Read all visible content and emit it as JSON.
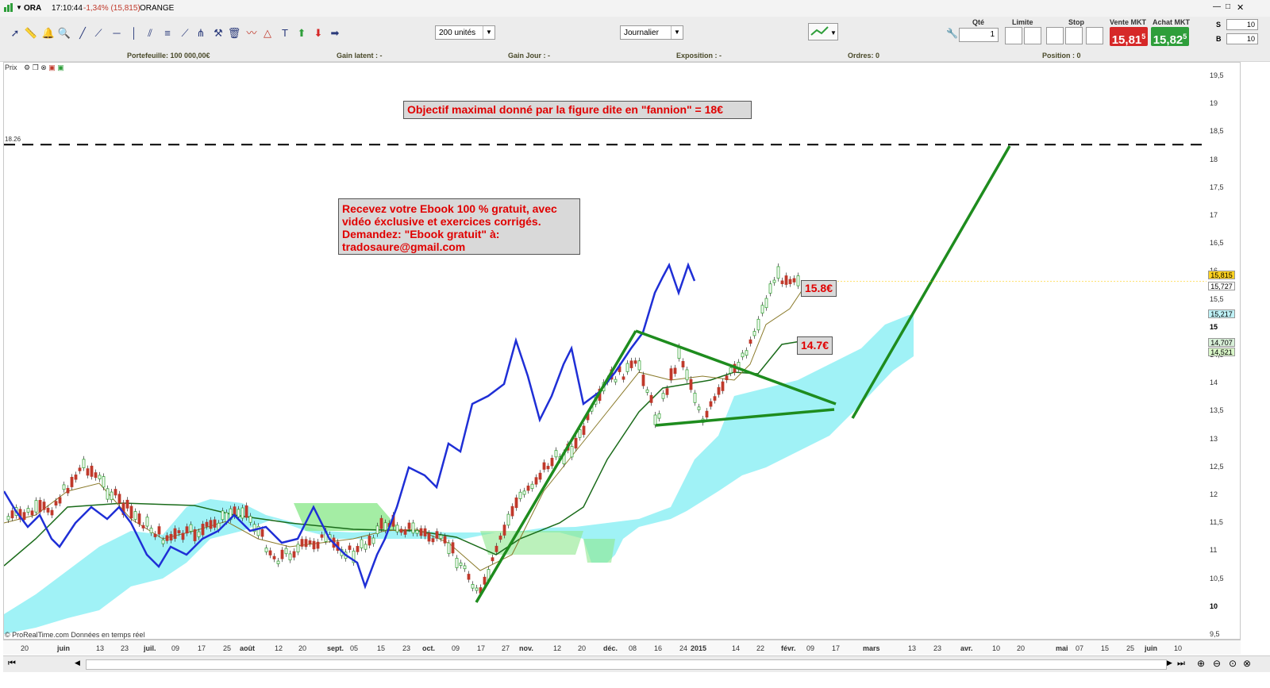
{
  "titlebar": {
    "symbol": "ORA",
    "time": "17:10:44",
    "change": "-1,34% (15,815)",
    "name": "ORANGE"
  },
  "toolbar": {
    "units_select": "200 unités",
    "period_select": "Journalier"
  },
  "order_panel": {
    "qty_label": "Qté",
    "qty_value": "1",
    "limit_label": "Limite",
    "stop_label": "Stop",
    "sell_label": "Vente MKT",
    "sell_price": "15,81",
    "sell_price_sup": "5",
    "buy_label": "Achat MKT",
    "buy_price": "15,82",
    "buy_price_sup": "5",
    "s_label": "S",
    "b_label": "B",
    "s_value": "10",
    "b_value": "10",
    "sell_color": "#d62828",
    "buy_color": "#2e9e3a"
  },
  "infobar": {
    "portfolio": "Portefeuille: 100 000,00€",
    "gain_latent": "Gain latent : -",
    "gain_jour": "Gain Jour : -",
    "exposition": "Exposition : -",
    "ordres": "Ordres: 0",
    "position": "Position : 0"
  },
  "chart_header": {
    "label": "Prix"
  },
  "chart": {
    "annotation_top": "Objectif maximal donné par la figure dite en \"fannion\"  = 18€",
    "ebook_lines": [
      "Recevez votre Ebook 100 % gratuit, avec",
      "vidéo éxclusive et exercices corrigés.",
      "Demandez: \"Ebook gratuit\" à:",
      "tradosaure@gmail.com"
    ],
    "tag_15_8": "15.8€",
    "tag_14_7": "14.7€",
    "target_line_label": "18.26",
    "footer": "© ProRealTime.com  Données en temps réel"
  },
  "y_axis": {
    "labels": [
      "19,5",
      "19",
      "18,5",
      "18",
      "17,5",
      "17",
      "16,5",
      "16",
      "15,5",
      "15",
      "14,5",
      "14",
      "13,5",
      "13",
      "12,5",
      "12",
      "11,5",
      "11",
      "10,5",
      "10",
      "9,5"
    ],
    "price_tags": [
      {
        "text": "15,815",
        "bg": "#ffd21f"
      },
      {
        "text": "15,727",
        "bg": "#ffffff"
      },
      {
        "text": "15,217",
        "bg": "#bff2f7"
      },
      {
        "text": "14,707",
        "bg": "#d8f0d8"
      },
      {
        "text": "14,521",
        "bg": "#d9f7c8"
      }
    ]
  },
  "x_axis": {
    "labels": [
      {
        "t": "20",
        "b": false
      },
      {
        "t": "juin",
        "b": true
      },
      {
        "t": "13",
        "b": false
      },
      {
        "t": "23",
        "b": false
      },
      {
        "t": "juil.",
        "b": true
      },
      {
        "t": "09",
        "b": false
      },
      {
        "t": "17",
        "b": false
      },
      {
        "t": "25",
        "b": false
      },
      {
        "t": "août",
        "b": true
      },
      {
        "t": "12",
        "b": false
      },
      {
        "t": "20",
        "b": false
      },
      {
        "t": "sept.",
        "b": true
      },
      {
        "t": "05",
        "b": false
      },
      {
        "t": "15",
        "b": false
      },
      {
        "t": "23",
        "b": false
      },
      {
        "t": "oct.",
        "b": true
      },
      {
        "t": "09",
        "b": false
      },
      {
        "t": "17",
        "b": false
      },
      {
        "t": "27",
        "b": false
      },
      {
        "t": "nov.",
        "b": true
      },
      {
        "t": "12",
        "b": false
      },
      {
        "t": "20",
        "b": false
      },
      {
        "t": "déc.",
        "b": true
      },
      {
        "t": "08",
        "b": false
      },
      {
        "t": "16",
        "b": false
      },
      {
        "t": "24",
        "b": false
      },
      {
        "t": "2015",
        "b": true
      },
      {
        "t": "14",
        "b": false
      },
      {
        "t": "22",
        "b": false
      },
      {
        "t": "févr.",
        "b": true
      },
      {
        "t": "09",
        "b": false
      },
      {
        "t": "17",
        "b": false
      },
      {
        "t": "mars",
        "b": true
      },
      {
        "t": "13",
        "b": false
      },
      {
        "t": "23",
        "b": false
      },
      {
        "t": "avr.",
        "b": true
      },
      {
        "t": "10",
        "b": false
      },
      {
        "t": "20",
        "b": false
      },
      {
        "t": "mai",
        "b": true
      },
      {
        "t": "07",
        "b": false
      },
      {
        "t": "15",
        "b": false
      },
      {
        "t": "25",
        "b": false
      },
      {
        "t": "juin",
        "b": true
      },
      {
        "t": "10",
        "b": false
      }
    ]
  },
  "colors": {
    "up_candle": "#3aa63a",
    "down_candle": "#c0392b",
    "cloud": "#8ff0f5",
    "cloud_green": "#8de88d",
    "blue_line": "#1f2fd6",
    "pattern_green": "#1e8c1e"
  }
}
